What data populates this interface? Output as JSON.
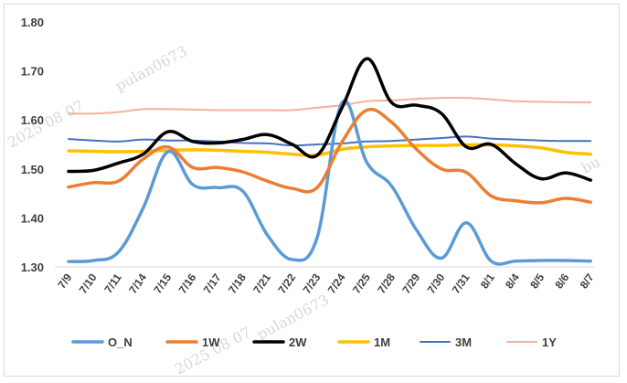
{
  "chart_data": {
    "type": "line",
    "title": "",
    "xlabel": "",
    "ylabel": "",
    "ylim": [
      1.3,
      1.8
    ],
    "yticks": [
      "1.30",
      "1.40",
      "1.50",
      "1.60",
      "1.70",
      "1.80"
    ],
    "grid": false,
    "legend_position": "bottom",
    "categories": [
      "7/9",
      "7/10",
      "7/11",
      "7/14",
      "7/15",
      "7/16",
      "7/17",
      "7/18",
      "7/21",
      "7/22",
      "7/23",
      "7/24",
      "7/25",
      "7/28",
      "7/29",
      "7/30",
      "7/31",
      "8/1",
      "8/4",
      "8/5",
      "8/6",
      "8/7"
    ],
    "series": [
      {
        "name": "O_N",
        "color": "#5b9bd5",
        "width": 3.5,
        "values": [
          1.311,
          1.313,
          1.33,
          1.42,
          1.535,
          1.468,
          1.462,
          1.455,
          1.365,
          1.315,
          1.36,
          1.635,
          1.513,
          1.465,
          1.375,
          1.318,
          1.39,
          1.312,
          1.312,
          1.313,
          1.313,
          1.312
        ]
      },
      {
        "name": "1W",
        "color": "#ed7d31",
        "width": 3.5,
        "values": [
          1.463,
          1.472,
          1.475,
          1.52,
          1.545,
          1.503,
          1.503,
          1.494,
          1.475,
          1.46,
          1.462,
          1.555,
          1.62,
          1.595,
          1.54,
          1.5,
          1.493,
          1.445,
          1.435,
          1.431,
          1.44,
          1.432
        ]
      },
      {
        "name": "2W",
        "color": "#000000",
        "width": 3.5,
        "values": [
          1.495,
          1.497,
          1.512,
          1.53,
          1.576,
          1.556,
          1.553,
          1.56,
          1.57,
          1.55,
          1.528,
          1.625,
          1.725,
          1.635,
          1.63,
          1.613,
          1.545,
          1.55,
          1.51,
          1.48,
          1.492,
          1.477
        ]
      },
      {
        "name": "1M",
        "color": "#ffc000",
        "width": 3.5,
        "values": [
          1.537,
          1.536,
          1.535,
          1.536,
          1.538,
          1.539,
          1.538,
          1.536,
          1.534,
          1.53,
          1.528,
          1.54,
          1.545,
          1.547,
          1.548,
          1.548,
          1.549,
          1.549,
          1.547,
          1.543,
          1.534,
          1.53
        ]
      },
      {
        "name": "3M",
        "color": "#4472c4",
        "width": 2,
        "values": [
          1.561,
          1.558,
          1.556,
          1.56,
          1.558,
          1.558,
          1.556,
          1.553,
          1.552,
          1.548,
          1.55,
          1.552,
          1.556,
          1.557,
          1.56,
          1.563,
          1.566,
          1.562,
          1.56,
          1.558,
          1.557,
          1.557
        ]
      },
      {
        "name": "1Y",
        "color": "#f4b19a",
        "width": 2,
        "values": [
          1.613,
          1.613,
          1.616,
          1.622,
          1.622,
          1.621,
          1.62,
          1.62,
          1.62,
          1.62,
          1.625,
          1.63,
          1.638,
          1.64,
          1.643,
          1.645,
          1.645,
          1.642,
          1.638,
          1.637,
          1.636,
          1.636
        ]
      }
    ]
  }
}
